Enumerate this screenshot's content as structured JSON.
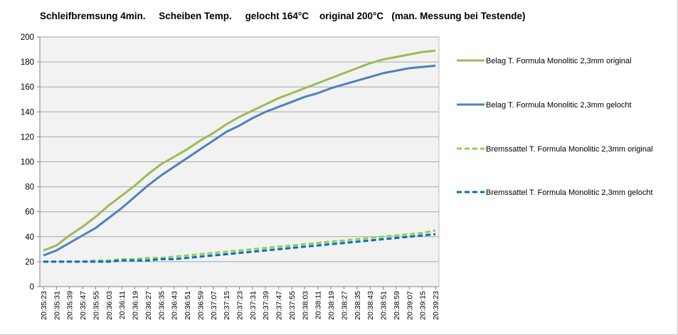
{
  "chart_data": {
    "type": "line",
    "title": "Schleifbremsung 4min.     Scheiben Temp.     gelocht 164°C    original 200°C   (man. Messung bei Testende)",
    "xlabel": "",
    "ylabel": "",
    "ylim": [
      0,
      200
    ],
    "y_ticks": [
      0,
      20,
      40,
      60,
      80,
      100,
      120,
      140,
      160,
      180,
      200
    ],
    "grid": "horizontal",
    "legend_position": "right",
    "x_tick_labels": [
      "20:35:23",
      "20:35:31",
      "20:35:39",
      "20:35:47",
      "20:35:55",
      "20:36:03",
      "20:36:11",
      "20:36:19",
      "20:36:27",
      "20:36:35",
      "20:36:43",
      "20:36:51",
      "20:36:59",
      "20:37:07",
      "20:37:15",
      "20:37:23",
      "20:37:31",
      "20:37:39",
      "20:37:47",
      "20:37:55",
      "20:38:03",
      "20:38:11",
      "20:38:19",
      "20:38:27",
      "20:38:35",
      "20:38:43",
      "20:38:51",
      "20:38:59",
      "20:39:07",
      "20:39:15",
      "20:39:23"
    ],
    "series": [
      {
        "name": "Belag T. Formula Monolitic 2,3mm original",
        "color": "#9bbb59",
        "dash": "solid",
        "values": [
          29,
          33,
          41,
          48,
          56,
          65,
          73,
          81,
          90,
          98,
          104,
          110,
          117,
          123,
          130,
          136,
          141,
          146,
          151,
          155,
          159,
          163,
          167,
          171,
          175,
          179,
          182,
          184,
          186,
          188,
          189
        ]
      },
      {
        "name": "Belag T. Formula Monolitic 2,3mm gelocht",
        "color": "#4f81bd",
        "dash": "solid",
        "values": [
          25,
          29,
          35,
          41,
          47,
          55,
          63,
          72,
          81,
          89,
          96,
          103,
          110,
          117,
          124,
          129,
          135,
          140,
          144,
          148,
          152,
          155,
          159,
          162,
          165,
          168,
          171,
          173,
          175,
          176,
          177
        ]
      },
      {
        "name": "Bremssattel T. Formula Monolitic 2,3mm original",
        "color": "#92d050",
        "dash": "dashed",
        "values": [
          20,
          20,
          20,
          20,
          21,
          21,
          22,
          22,
          23,
          23,
          24,
          25,
          26,
          27,
          28,
          29,
          30,
          31,
          32,
          33,
          34,
          35,
          36,
          37,
          38,
          39,
          40,
          41,
          42,
          43,
          45
        ]
      },
      {
        "name": "Bremssattel T. Formula Monolitic 2,3mm gelocht",
        "color": "#0070c0",
        "dash": "dashed",
        "values": [
          20,
          20,
          20,
          20,
          20,
          20,
          21,
          21,
          21,
          22,
          22,
          23,
          24,
          25,
          26,
          27,
          28,
          29,
          30,
          31,
          32,
          33,
          34,
          35,
          36,
          37,
          38,
          39,
          40,
          41,
          42
        ]
      }
    ]
  }
}
